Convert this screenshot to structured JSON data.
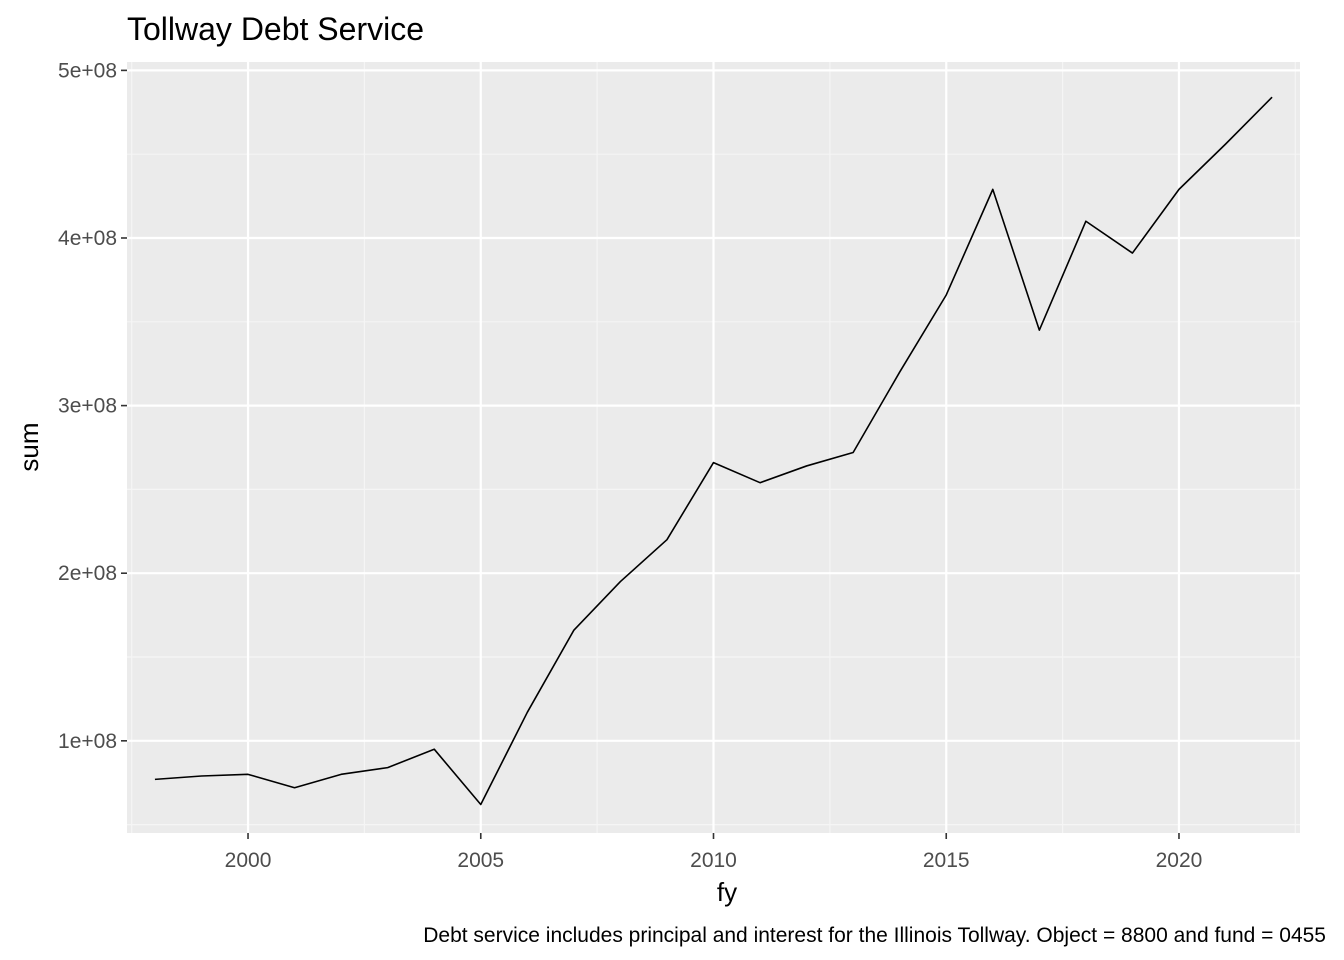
{
  "chart_data": {
    "type": "line",
    "title": "Tollway Debt Service",
    "xlabel": "fy",
    "ylabel": "sum",
    "caption": "Debt service includes principal and interest for the Illinois Tollway. Object = 8800 and fund = 0455",
    "xlim": [
      1997.4,
      2022.6
    ],
    "ylim": [
      45000000,
      505000000
    ],
    "x_ticks": [
      2000,
      2005,
      2010,
      2015,
      2020
    ],
    "x_tick_labels": [
      "2000",
      "2005",
      "2010",
      "2015",
      "2020"
    ],
    "x_minor_ticks": [
      1997.5,
      2002.5,
      2007.5,
      2012.5,
      2017.5,
      2022.5
    ],
    "y_ticks": [
      100000000,
      200000000,
      300000000,
      400000000,
      500000000
    ],
    "y_tick_labels": [
      "1e+08",
      "2e+08",
      "3e+08",
      "4e+08",
      "5e+08"
    ],
    "y_minor_ticks": [
      50000000,
      150000000,
      250000000,
      350000000,
      450000000
    ],
    "grid": true,
    "legend": "none",
    "colors": {
      "panel_background": "#ebebeb",
      "grid_major": "#ffffff",
      "grid_minor": "#f5f5f5",
      "line": "#000000",
      "tick_mark": "#333333"
    },
    "series": [
      {
        "x": [
          1998,
          1999,
          2000,
          2001,
          2002,
          2003,
          2004,
          2005,
          2006,
          2007,
          2008,
          2009,
          2010,
          2011,
          2012,
          2013,
          2014,
          2015,
          2016,
          2017,
          2018,
          2019,
          2020,
          2021,
          2022
        ],
        "values": [
          77000000,
          79000000,
          80000000,
          72000000,
          80000000,
          84000000,
          95000000,
          62000000,
          117000000,
          166000000,
          195000000,
          220000000,
          266000000,
          254000000,
          264000000,
          272000000,
          320000000,
          366000000,
          429000000,
          345000000,
          410000000,
          391000000,
          429000000,
          456000000,
          484000000
        ]
      }
    ]
  }
}
